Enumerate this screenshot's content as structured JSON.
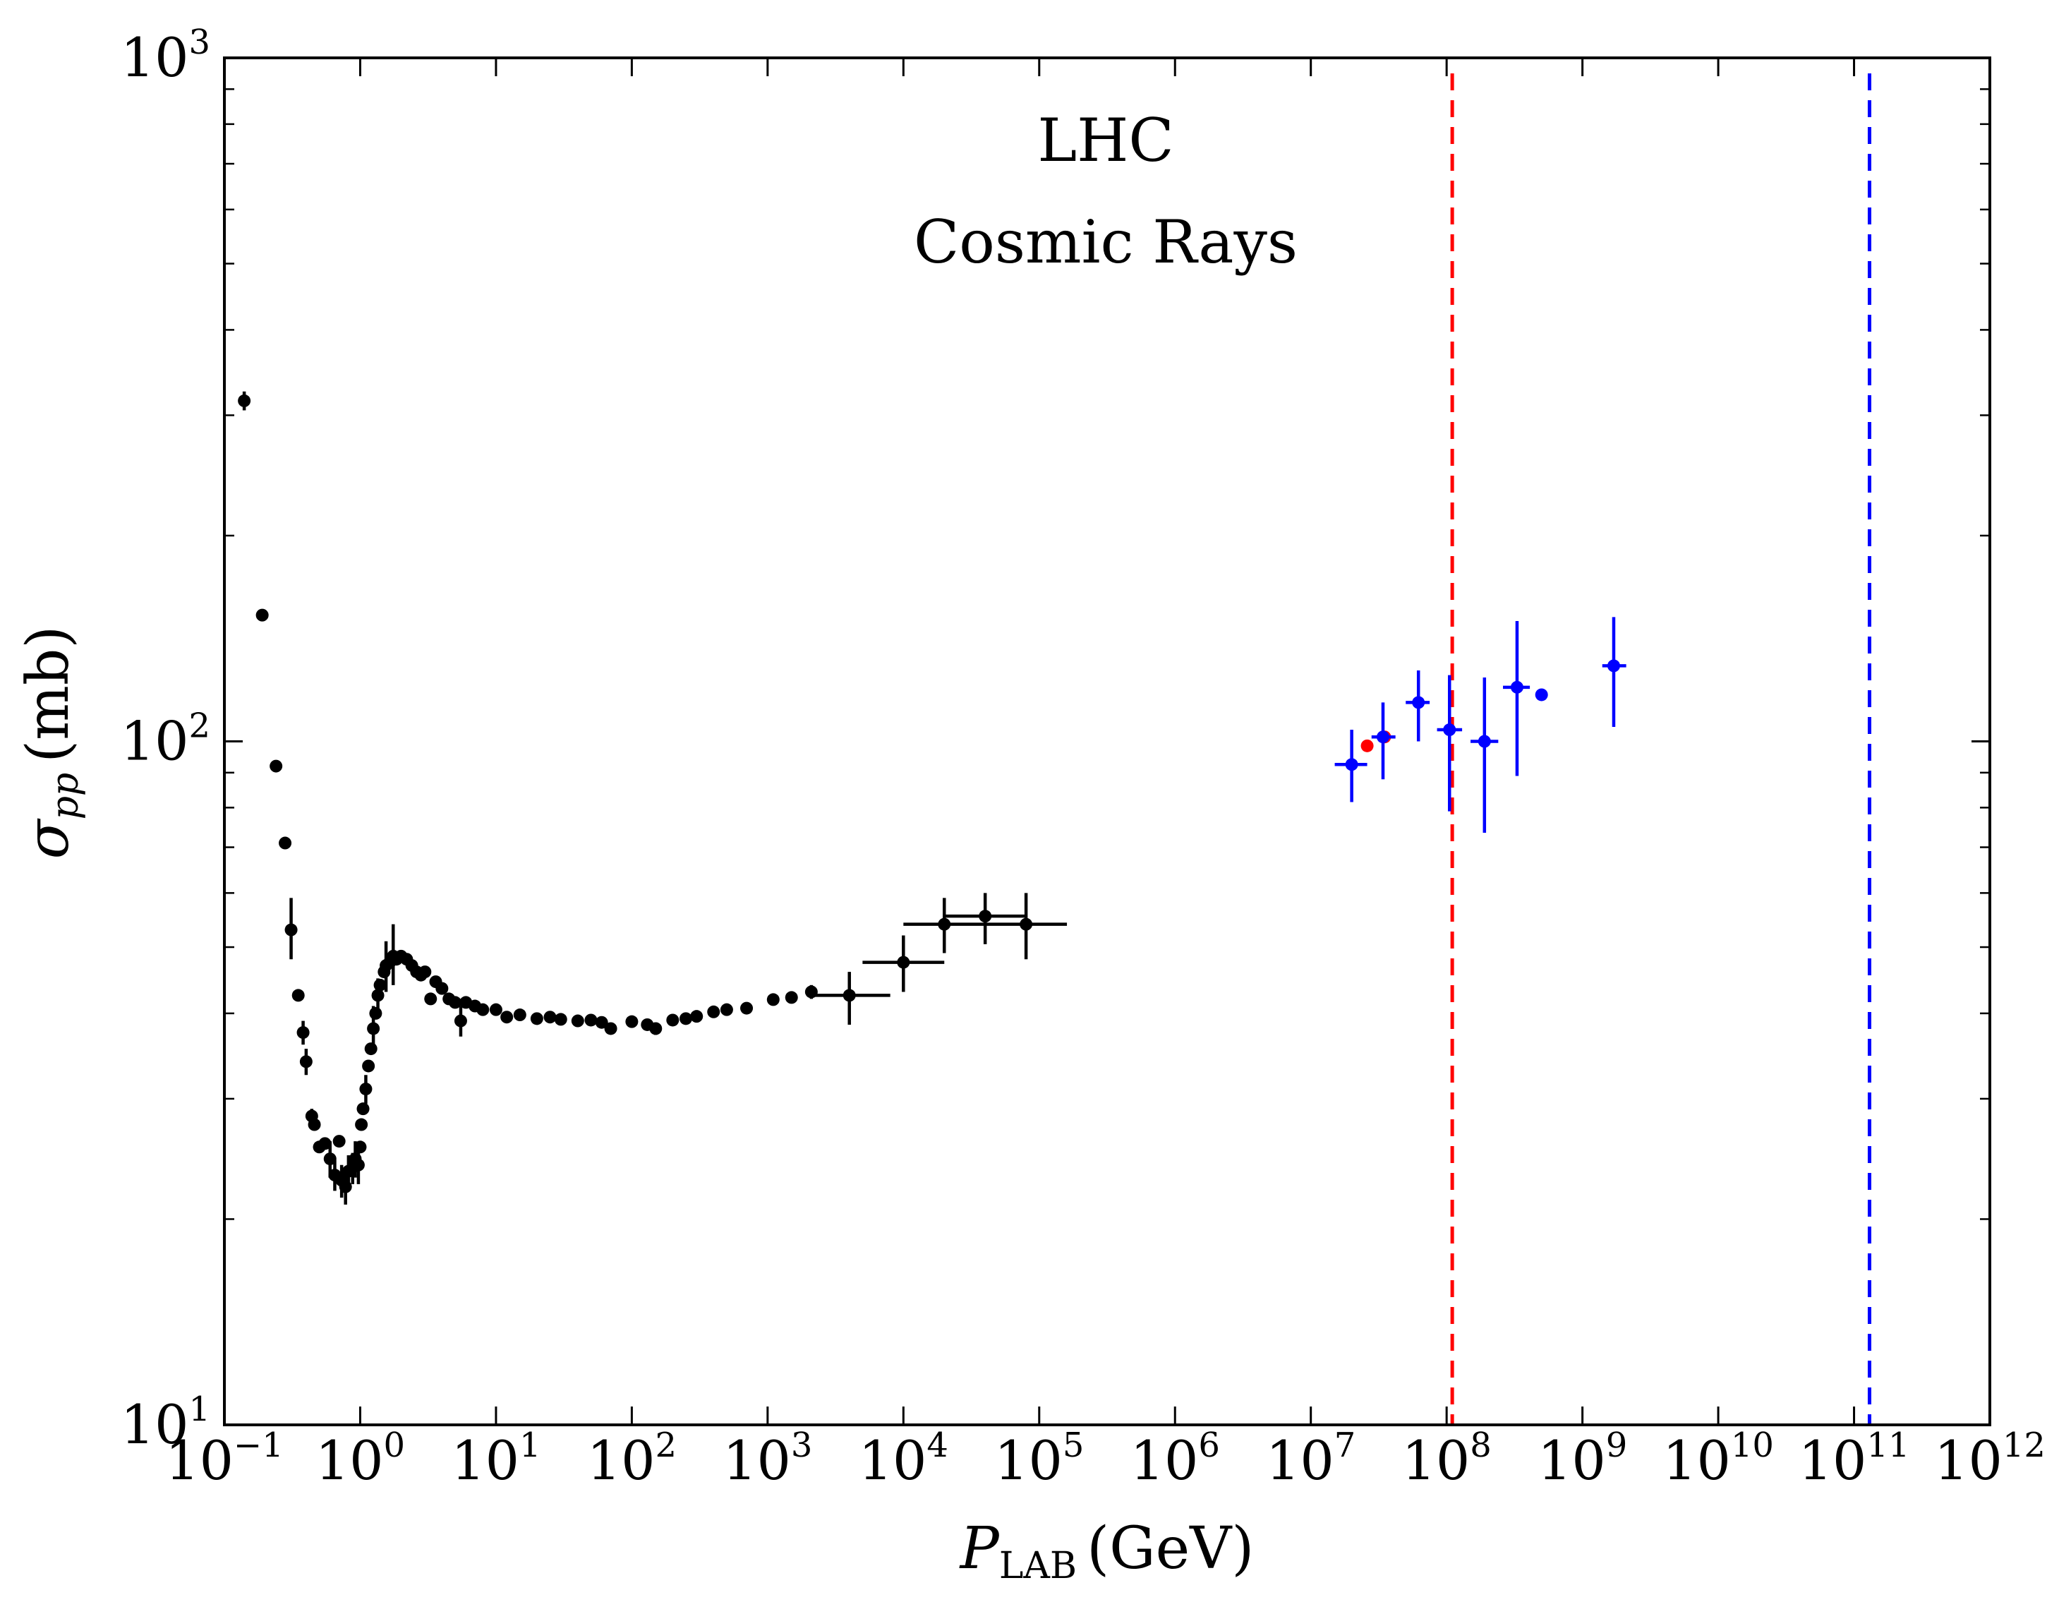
{
  "chart_data": {
    "type": "scatter",
    "xscale": "log",
    "yscale": "log",
    "xlim": [
      0.1,
      1000000000000.0
    ],
    "ylim": [
      10,
      1000
    ],
    "xlabel": {
      "base": "P",
      "sub": "LAB",
      "unit": "(GeV)"
    },
    "ylabel": {
      "base": "σ",
      "sub": "pp",
      "unit": "(mb)"
    },
    "x_ticks": [
      {
        "value": 0.1,
        "base": "10",
        "exp": "−1"
      },
      {
        "value": 1,
        "base": "10",
        "exp": "0"
      },
      {
        "value": 10,
        "base": "10",
        "exp": "1"
      },
      {
        "value": 100,
        "base": "10",
        "exp": "2"
      },
      {
        "value": 1000,
        "base": "10",
        "exp": "3"
      },
      {
        "value": 10000,
        "base": "10",
        "exp": "4"
      },
      {
        "value": 100000,
        "base": "10",
        "exp": "5"
      },
      {
        "value": 1000000,
        "base": "10",
        "exp": "6"
      },
      {
        "value": 10000000,
        "base": "10",
        "exp": "7"
      },
      {
        "value": 100000000,
        "base": "10",
        "exp": "8"
      },
      {
        "value": 1000000000,
        "base": "10",
        "exp": "9"
      },
      {
        "value": 10000000000,
        "base": "10",
        "exp": "10"
      },
      {
        "value": 100000000000,
        "base": "10",
        "exp": "11"
      },
      {
        "value": 1000000000000,
        "base": "10",
        "exp": "12"
      }
    ],
    "y_ticks": [
      {
        "value": 10,
        "base": "10",
        "exp": "1"
      },
      {
        "value": 100,
        "base": "10",
        "exp": "2"
      },
      {
        "value": 1000,
        "base": "10",
        "exp": "3"
      }
    ],
    "grid": false,
    "annotations": [
      {
        "text": "LHC",
        "color": "#ff0000"
      },
      {
        "text": "Cosmic Rays",
        "color": "#0000ff"
      }
    ],
    "vlines": [
      {
        "x": 110000000.0,
        "color": "#ff0000",
        "style": "dashed"
      },
      {
        "x": 130000000000.0,
        "color": "#0000ff",
        "style": "dashed"
      }
    ],
    "series": [
      {
        "color": "#000000",
        "points": [
          {
            "x": 0.14,
            "y": 315,
            "ylo": 305,
            "yhi": 325
          },
          {
            "x": 0.19,
            "y": 153
          },
          {
            "x": 0.24,
            "y": 92
          },
          {
            "x": 0.28,
            "y": 71
          },
          {
            "x": 0.31,
            "y": 53,
            "ylo": 48,
            "yhi": 59
          },
          {
            "x": 0.35,
            "y": 42.5
          },
          {
            "x": 0.38,
            "y": 37.5,
            "ylo": 36,
            "yhi": 39
          },
          {
            "x": 0.4,
            "y": 34,
            "ylo": 32.5,
            "yhi": 35.5
          },
          {
            "x": 0.44,
            "y": 28.3,
            "ylo": 27.5,
            "yhi": 29
          },
          {
            "x": 0.46,
            "y": 27.5
          },
          {
            "x": 0.5,
            "y": 25.5
          },
          {
            "x": 0.55,
            "y": 25.8
          },
          {
            "x": 0.6,
            "y": 24.5,
            "ylo": 23,
            "yhi": 26
          },
          {
            "x": 0.65,
            "y": 23.2,
            "ylo": 22,
            "yhi": 24.4
          },
          {
            "x": 0.7,
            "y": 26
          },
          {
            "x": 0.73,
            "y": 22.8,
            "ylo": 21.5,
            "yhi": 24
          },
          {
            "x": 0.78,
            "y": 22.3,
            "ylo": 21,
            "yhi": 23.5
          },
          {
            "x": 0.82,
            "y": 23.5,
            "ylo": 22.3,
            "yhi": 24.8
          },
          {
            "x": 0.88,
            "y": 23.8,
            "ylo": 22.5,
            "yhi": 25
          },
          {
            "x": 0.92,
            "y": 24.5,
            "ylo": 23,
            "yhi": 26
          },
          {
            "x": 0.97,
            "y": 24.0,
            "ylo": 22.5,
            "yhi": 25.5
          },
          {
            "x": 1.0,
            "y": 25.5
          },
          {
            "x": 1.02,
            "y": 27.5
          },
          {
            "x": 1.05,
            "y": 29.0
          },
          {
            "x": 1.1,
            "y": 31.0,
            "ylo": 29.5,
            "yhi": 32.5
          },
          {
            "x": 1.15,
            "y": 33.5
          },
          {
            "x": 1.2,
            "y": 35.5
          },
          {
            "x": 1.25,
            "y": 38.0,
            "ylo": 35,
            "yhi": 41
          },
          {
            "x": 1.3,
            "y": 40.0
          },
          {
            "x": 1.35,
            "y": 42.5,
            "ylo": 40,
            "yhi": 45
          },
          {
            "x": 1.4,
            "y": 44.0
          },
          {
            "x": 1.5,
            "y": 46.0
          },
          {
            "x": 1.55,
            "y": 47.0,
            "ylo": 43,
            "yhi": 51
          },
          {
            "x": 1.65,
            "y": 47.5
          },
          {
            "x": 1.75,
            "y": 48.5,
            "ylo": 44,
            "yhi": 54
          },
          {
            "x": 1.85,
            "y": 48.0
          },
          {
            "x": 2.0,
            "y": 48.5
          },
          {
            "x": 2.2,
            "y": 48.0
          },
          {
            "x": 2.4,
            "y": 47.0
          },
          {
            "x": 2.6,
            "y": 46.0
          },
          {
            "x": 2.8,
            "y": 45.5
          },
          {
            "x": 3.0,
            "y": 46.0
          },
          {
            "x": 3.3,
            "y": 42.0
          },
          {
            "x": 3.6,
            "y": 44.5
          },
          {
            "x": 4.0,
            "y": 43.5
          },
          {
            "x": 4.5,
            "y": 42.0
          },
          {
            "x": 5.0,
            "y": 41.5
          },
          {
            "x": 5.5,
            "y": 39.0,
            "ylo": 37,
            "yhi": 41
          },
          {
            "x": 6.0,
            "y": 41.5
          },
          {
            "x": 7.0,
            "y": 41.0
          },
          {
            "x": 8.0,
            "y": 40.5
          },
          {
            "x": 10,
            "y": 40.5
          },
          {
            "x": 12,
            "y": 39.5
          },
          {
            "x": 15,
            "y": 39.8
          },
          {
            "x": 20,
            "y": 39.3
          },
          {
            "x": 25,
            "y": 39.5
          },
          {
            "x": 30,
            "y": 39.2
          },
          {
            "x": 40,
            "y": 39.0
          },
          {
            "x": 50,
            "y": 39.1
          },
          {
            "x": 60,
            "y": 38.8
          },
          {
            "x": 70,
            "y": 38.0
          },
          {
            "x": 100,
            "y": 38.9
          },
          {
            "x": 130,
            "y": 38.5
          },
          {
            "x": 150,
            "y": 38.0,
            "ylo": 37.2,
            "yhi": 38.8
          },
          {
            "x": 200,
            "y": 39.1
          },
          {
            "x": 250,
            "y": 39.3
          },
          {
            "x": 300,
            "y": 39.6
          },
          {
            "x": 400,
            "y": 40.2
          },
          {
            "x": 500,
            "y": 40.5
          },
          {
            "x": 700,
            "y": 40.7
          },
          {
            "x": 1100,
            "y": 41.9
          },
          {
            "x": 1500,
            "y": 42.2
          },
          {
            "x": 2100,
            "y": 43.0,
            "ylo": 42,
            "yhi": 44
          },
          {
            "x": 4000,
            "y": 42.5,
            "ylo": 38.5,
            "yhi": 46,
            "xlo": 2000,
            "xhi": 8000
          },
          {
            "x": 10000,
            "y": 47.5,
            "ylo": 43,
            "yhi": 52,
            "xlo": 5000,
            "xhi": 20000
          },
          {
            "x": 20000,
            "y": 54.0,
            "ylo": 49,
            "yhi": 59,
            "xlo": 10000,
            "xhi": 40000
          },
          {
            "x": 40000,
            "y": 55.5,
            "ylo": 50.5,
            "yhi": 60,
            "xlo": 20000,
            "xhi": 80000
          },
          {
            "x": 80000,
            "y": 54.0,
            "ylo": 48,
            "yhi": 60,
            "xlo": 40000,
            "xhi": 160000
          }
        ]
      },
      {
        "color": "#ff0000",
        "points": [
          {
            "x": 26000000.0,
            "y": 98.5
          },
          {
            "x": 35000000.0,
            "y": 101.5
          }
        ]
      },
      {
        "color": "#0000ff",
        "points": [
          {
            "x": 20000000.0,
            "y": 92.5,
            "ylo": 81.5,
            "yhi": 104,
            "xlo": 15000000.0,
            "xhi": 26000000.0
          },
          {
            "x": 34000000.0,
            "y": 101.5,
            "ylo": 88,
            "yhi": 114,
            "xlo": 28000000.0,
            "xhi": 42000000.0
          },
          {
            "x": 62000000.0,
            "y": 114,
            "ylo": 100,
            "yhi": 127,
            "xlo": 50000000.0,
            "xhi": 75000000.0
          },
          {
            "x": 105000000.0,
            "y": 104,
            "ylo": 79,
            "yhi": 125,
            "xlo": 85000000.0,
            "xhi": 130000000.0
          },
          {
            "x": 190000000.0,
            "y": 100,
            "ylo": 73.5,
            "yhi": 124,
            "xlo": 150000000.0,
            "xhi": 240000000.0
          },
          {
            "x": 330000000.0,
            "y": 120,
            "ylo": 89,
            "yhi": 150,
            "xlo": 260000000.0,
            "xhi": 410000000.0
          },
          {
            "x": 500000000.0,
            "y": 117
          },
          {
            "x": 1700000000.0,
            "y": 129,
            "ylo": 105,
            "yhi": 152,
            "xlo": 1400000000.0,
            "xhi": 2100000000.0
          }
        ]
      }
    ]
  }
}
